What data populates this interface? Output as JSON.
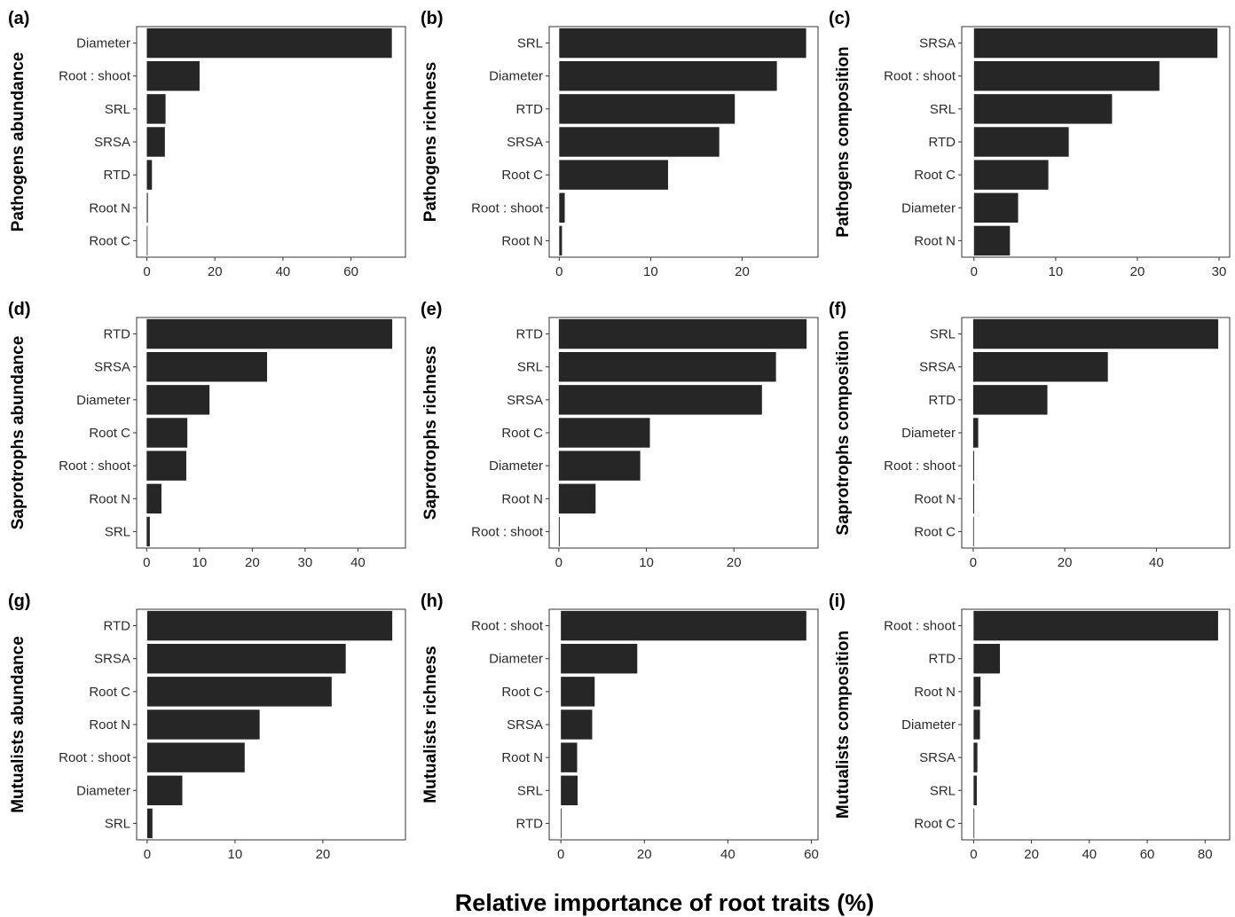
{
  "figure": {
    "xlabel": "Relative importance of root  traits (%)"
  },
  "chart_data": [
    {
      "type": "bar",
      "orientation": "horizontal",
      "panel": "(a)",
      "ylabel": "Pathogens abundance",
      "categories": [
        "Diameter",
        "Root : shoot",
        "SRL",
        "SRSA",
        "RTD",
        "Root N",
        "Root C"
      ],
      "values": [
        72,
        15.5,
        5.5,
        5.3,
        1.5,
        0.3,
        0.2
      ],
      "xlim": [
        -3,
        76
      ],
      "xticks": [
        0,
        20,
        40,
        60
      ]
    },
    {
      "type": "bar",
      "orientation": "horizontal",
      "panel": "(b)",
      "ylabel": "Pathogens richness",
      "categories": [
        "SRL",
        "Diameter",
        "RTD",
        "SRSA",
        "Root C",
        "Root : shoot",
        "Root N"
      ],
      "values": [
        27,
        23.8,
        19.2,
        17.5,
        11.9,
        0.6,
        0.3
      ],
      "xlim": [
        -1.1,
        28.3
      ],
      "xticks": [
        0,
        10,
        20
      ]
    },
    {
      "type": "bar",
      "orientation": "horizontal",
      "panel": "(c)",
      "ylabel": "Pathogens composition",
      "categories": [
        "SRSA",
        "Root : shoot",
        "SRL",
        "RTD",
        "Root C",
        "Diameter",
        "Root N"
      ],
      "values": [
        29.8,
        22.7,
        16.9,
        11.6,
        9.1,
        5.4,
        4.4
      ],
      "xlim": [
        -1.5,
        31.3
      ],
      "xticks": [
        0,
        10,
        20,
        30
      ]
    },
    {
      "type": "bar",
      "orientation": "horizontal",
      "panel": "(d)",
      "ylabel": "Saprotrophs abundance",
      "categories": [
        "RTD",
        "SRSA",
        "Diameter",
        "Root C",
        "Root : shoot",
        "Root N",
        "SRL"
      ],
      "values": [
        46.5,
        22.8,
        11.9,
        7.7,
        7.5,
        2.8,
        0.6
      ],
      "xlim": [
        -1.9,
        49
      ],
      "xticks": [
        0,
        10,
        20,
        30,
        40
      ]
    },
    {
      "type": "bar",
      "orientation": "horizontal",
      "panel": "(e)",
      "ylabel": "Saprotrophs richness",
      "categories": [
        "RTD",
        "SRL",
        "SRSA",
        "Root C",
        "Diameter",
        "Root N",
        "Root : shoot"
      ],
      "values": [
        28.3,
        24.8,
        23.2,
        10.4,
        9.3,
        4.2,
        0.1
      ],
      "xlim": [
        -1.1,
        29.6
      ],
      "xticks": [
        0,
        10,
        20
      ]
    },
    {
      "type": "bar",
      "orientation": "horizontal",
      "panel": "(f)",
      "ylabel": "Saprotrophs composition",
      "categories": [
        "SRL",
        "SRSA",
        "RTD",
        "Diameter",
        "Root : shoot",
        "Root N",
        "Root C"
      ],
      "values": [
        53.5,
        29.4,
        16.2,
        1.1,
        0.2,
        0.2,
        0.1
      ],
      "xlim": [
        -2.5,
        56
      ],
      "xticks": [
        0,
        20,
        40
      ]
    },
    {
      "type": "bar",
      "orientation": "horizontal",
      "panel": "(g)",
      "ylabel": "Mutualists abundance",
      "categories": [
        "RTD",
        "SRSA",
        "Root C",
        "Root N",
        "Root : shoot",
        "Diameter",
        "SRL"
      ],
      "values": [
        27.9,
        22.6,
        21,
        12.8,
        11.1,
        4,
        0.6
      ],
      "xlim": [
        -1.2,
        29.4
      ],
      "xticks": [
        0,
        10,
        20
      ]
    },
    {
      "type": "bar",
      "orientation": "horizontal",
      "panel": "(h)",
      "ylabel": "Mutualists richness",
      "categories": [
        "Root : shoot",
        "Diameter",
        "Root C",
        "SRSA",
        "Root N",
        "SRL",
        "RTD"
      ],
      "values": [
        58.8,
        18.3,
        8.1,
        7.5,
        3.9,
        4,
        0.1
      ],
      "xlim": [
        -2.8,
        61.6
      ],
      "xticks": [
        0,
        20,
        40,
        60
      ]
    },
    {
      "type": "bar",
      "orientation": "horizontal",
      "panel": "(i)",
      "ylabel": "Mutualists composition",
      "categories": [
        "Root : shoot",
        "RTD",
        "Root N",
        "Diameter",
        "SRSA",
        "SRL",
        "Root C"
      ],
      "values": [
        84.5,
        9.1,
        2.4,
        2.2,
        1.3,
        1.1,
        0.2
      ],
      "xlim": [
        -4.1,
        88.5
      ],
      "xticks": [
        0,
        20,
        40,
        60,
        80
      ]
    }
  ]
}
